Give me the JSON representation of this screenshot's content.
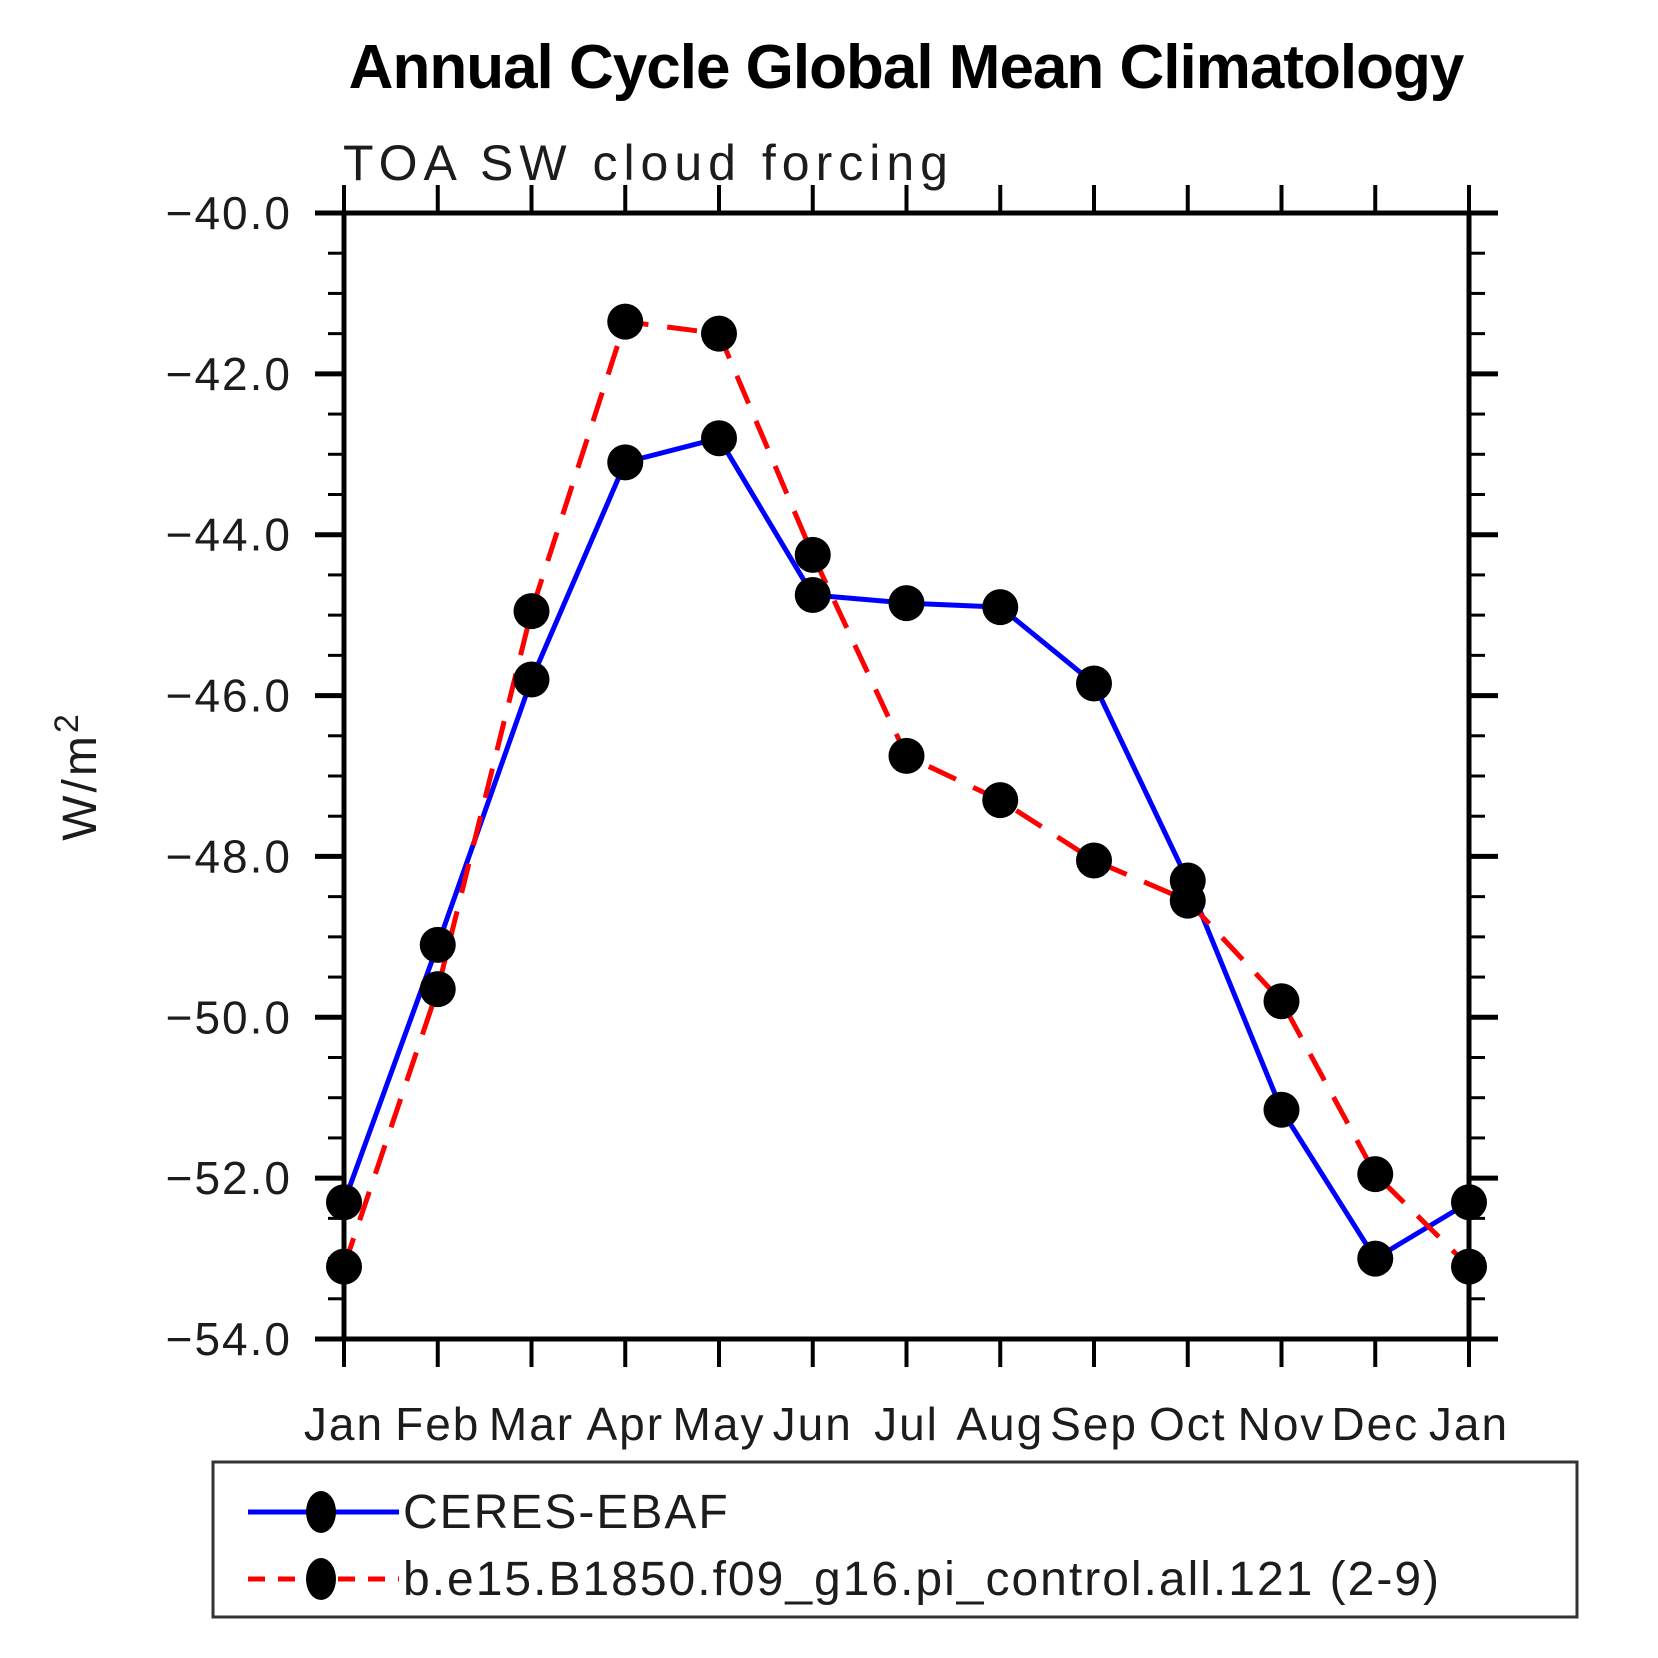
{
  "page": {
    "background": "#ffffff"
  },
  "chart_data": {
    "type": "line",
    "title": "Annual Cycle Global Mean Climatology",
    "subtitle": "TOA SW cloud forcing",
    "ylabel": "W/m",
    "ylabel_superscript": "2",
    "x_tick_labels": [
      "Jan",
      "Feb",
      "Mar",
      "Apr",
      "May",
      "Jun",
      "Jul",
      "Aug",
      "Sep",
      "Oct",
      "Nov",
      "Dec",
      "Jan"
    ],
    "ylim": [
      -54.0,
      -40.0
    ],
    "y_major_tick_values": [
      -40,
      -42,
      -44,
      -46,
      -48,
      -50,
      -52,
      -54
    ],
    "y_major_tick_labels": [
      "−40.0",
      "−42.0",
      "−44.0",
      "−46.0",
      "−48.0",
      "−50.0",
      "−52.0",
      "−54.0"
    ],
    "y_minor_tick_step": 0.5,
    "grid": "off",
    "axis_color": "#000000",
    "marker_color": "#000000",
    "legend_position": "bottom-left",
    "series": [
      {
        "name": "CERES-EBAF",
        "color": "#0000ff",
        "line_style": "solid",
        "marker": "filled-circle",
        "values": [
          -52.3,
          -49.1,
          -45.8,
          -43.1,
          -42.8,
          -44.75,
          -44.85,
          -44.9,
          -45.85,
          -48.3,
          -51.15,
          -53.0,
          -52.3
        ]
      },
      {
        "name": "b.e15.B1850.f09_g16.pi_control.all.121 (2-9)",
        "color": "#ff0000",
        "line_style": "dashed",
        "marker": "filled-circle",
        "values": [
          -53.1,
          -49.65,
          -44.95,
          -41.35,
          -41.5,
          -44.25,
          -46.75,
          -47.3,
          -48.05,
          -48.55,
          -49.8,
          -51.95,
          -53.1
        ]
      }
    ]
  }
}
